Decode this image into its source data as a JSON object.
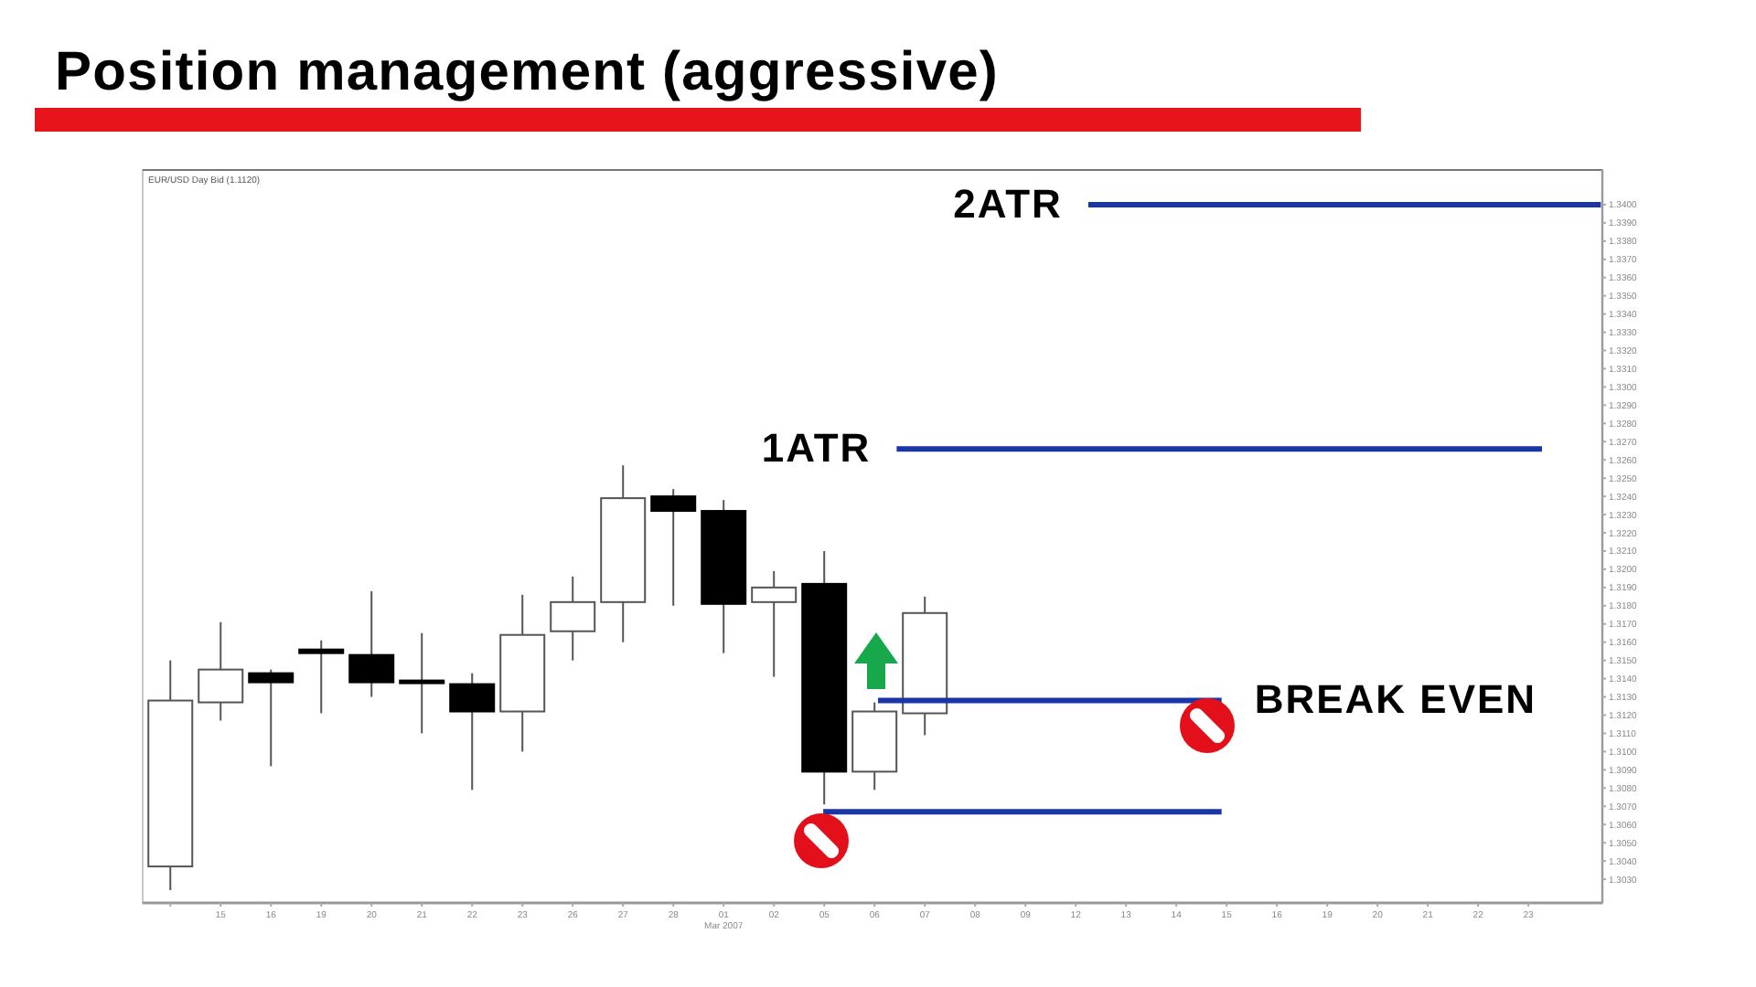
{
  "chart_data": {
    "type": "candlestick",
    "title": "Position management (aggressive)",
    "subtitle": "EUR/USD Day Bid (1.1120)",
    "categories": [
      null,
      "15",
      "16",
      "19",
      "20",
      "21",
      "22",
      "23",
      "26",
      "27",
      "28",
      "01",
      "02",
      "05",
      "06",
      "07",
      "08",
      "09",
      "12",
      "13",
      "14",
      "15",
      "16",
      "19",
      "20",
      "21",
      "22",
      "23"
    ],
    "ohlc": [
      [
        1.3037,
        1.315,
        1.3024,
        1.3128
      ],
      [
        1.3127,
        1.3171,
        1.3117,
        1.3145
      ],
      [
        1.3143,
        1.3145,
        1.3092,
        1.3138
      ],
      [
        1.3156,
        1.3161,
        1.3121,
        1.3154
      ],
      [
        1.3153,
        1.3188,
        1.313,
        1.3138
      ],
      [
        1.3139,
        1.3165,
        1.311,
        1.3138
      ],
      [
        1.3137,
        1.3143,
        1.3079,
        1.3122
      ],
      [
        1.3122,
        1.3186,
        1.31,
        1.3164
      ],
      [
        1.3166,
        1.3196,
        1.315,
        1.3182
      ],
      [
        1.3182,
        1.3257,
        1.316,
        1.3239
      ],
      [
        1.324,
        1.3244,
        1.318,
        1.3232
      ],
      [
        1.3232,
        1.3238,
        1.3154,
        1.3181
      ],
      [
        1.3182,
        1.3199,
        1.3141,
        1.319
      ],
      [
        1.3192,
        1.321,
        1.3071,
        1.3089
      ],
      [
        1.3089,
        1.3127,
        1.3079,
        1.3122
      ],
      [
        1.3121,
        1.3185,
        1.3109,
        1.3176
      ],
      null,
      null,
      null,
      null,
      null,
      null,
      null,
      null,
      null,
      null,
      null,
      null
    ],
    "ylim": [
      1.3017,
      1.3419
    ],
    "yticks": [
      {
        "value": 1.303,
        "label": "1.3030"
      },
      {
        "value": 1.304,
        "label": "1.3040"
      },
      {
        "value": 1.305,
        "label": "1.3050"
      },
      {
        "value": 1.306,
        "label": "1.3060"
      },
      {
        "value": 1.307,
        "label": "1.3070"
      },
      {
        "value": 1.308,
        "label": "1.3080"
      },
      {
        "value": 1.309,
        "label": "1.3090"
      },
      {
        "value": 1.31,
        "label": "1.3100"
      },
      {
        "value": 1.311,
        "label": "1.3110"
      },
      {
        "value": 1.312,
        "label": "1.3120"
      },
      {
        "value": 1.313,
        "label": "1.3130"
      },
      {
        "value": 1.314,
        "label": "1.3140"
      },
      {
        "value": 1.315,
        "label": "1.3150"
      },
      {
        "value": 1.316,
        "label": "1.3160"
      },
      {
        "value": 1.317,
        "label": "1.3170"
      },
      {
        "value": 1.318,
        "label": "1.3180"
      },
      {
        "value": 1.319,
        "label": "1.3190"
      },
      {
        "value": 1.32,
        "label": "1.3200"
      },
      {
        "value": 1.321,
        "label": "1.3210"
      },
      {
        "value": 1.322,
        "label": "1.3220"
      },
      {
        "value": 1.323,
        "label": "1.3230"
      },
      {
        "value": 1.324,
        "label": "1.3240"
      },
      {
        "value": 1.325,
        "label": "1.3250"
      },
      {
        "value": 1.326,
        "label": "1.3260"
      },
      {
        "value": 1.327,
        "label": "1.3270"
      },
      {
        "value": 1.328,
        "label": "1.3280"
      },
      {
        "value": 1.329,
        "label": "1.3290"
      },
      {
        "value": 1.33,
        "label": "1.3300"
      },
      {
        "value": 1.331,
        "label": "1.3310"
      },
      {
        "value": 1.332,
        "label": "1.3320"
      },
      {
        "value": 1.333,
        "label": "1.3330"
      },
      {
        "value": 1.334,
        "label": "1.3340"
      },
      {
        "value": 1.335,
        "label": "1.3350"
      },
      {
        "value": 1.336,
        "label": "1.3360"
      },
      {
        "value": 1.337,
        "label": "1.3370"
      },
      {
        "value": 1.338,
        "label": "1.3380"
      },
      {
        "value": 1.339,
        "label": "1.3390"
      },
      {
        "value": 1.34,
        "label": "1.3400"
      }
    ],
    "ref_lines": [
      {
        "axis": "y",
        "value": 1.34,
        "label": "2ATR",
        "color": "#1a36a6"
      },
      {
        "axis": "y",
        "value": 1.3266,
        "label": "1ATR",
        "color": "#1a36a6"
      },
      {
        "axis": "y",
        "value": 1.3128,
        "label": "BREAK EVEN",
        "color": "#1a36a6"
      },
      {
        "axis": "y",
        "value": 1.3067,
        "color": "#1a36a6"
      }
    ],
    "annotations": [
      "Mar 2007"
    ]
  }
}
